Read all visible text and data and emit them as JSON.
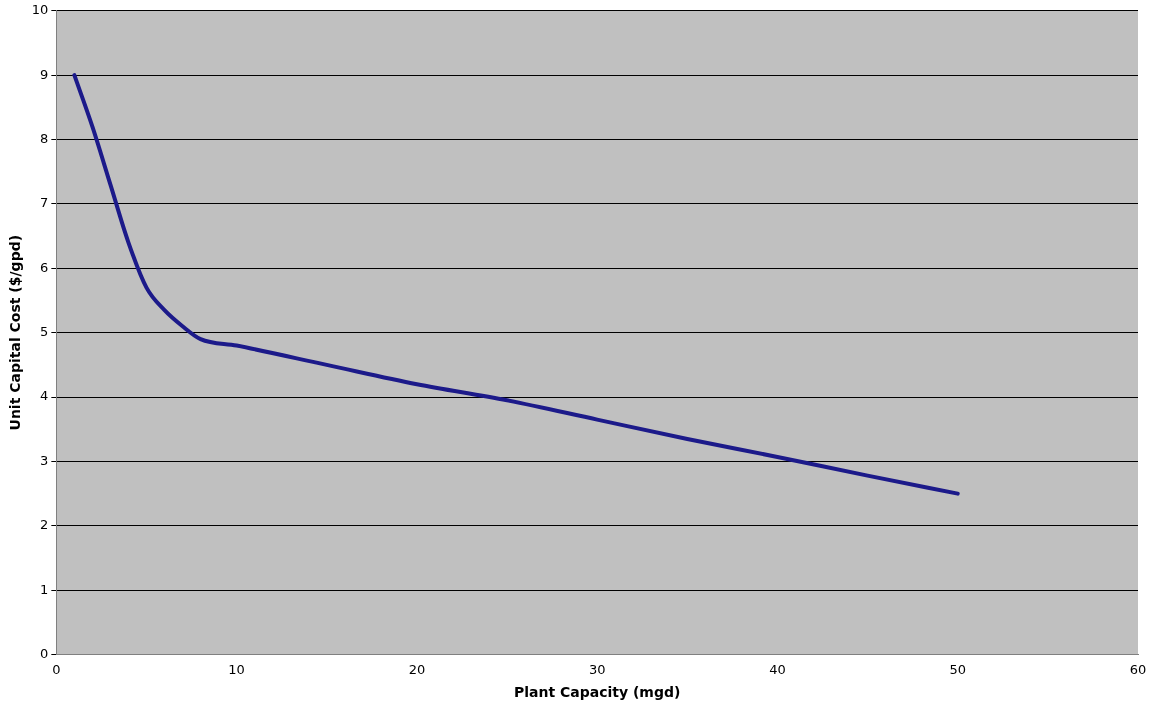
{
  "chart_data": {
    "type": "line",
    "xlabel": "Plant Capacity (mgd)",
    "ylabel": "Unit Capital Cost ($/gpd)",
    "x": [
      1,
      2,
      3,
      4,
      5,
      6,
      7,
      8,
      10,
      15,
      20,
      25,
      30,
      35,
      40,
      45,
      50
    ],
    "series": [
      {
        "color": "#1c1a8a",
        "values": [
          9,
          8.2,
          7.3,
          6.4,
          5.7,
          5.35,
          5.1,
          4.9,
          4.8,
          4.5,
          4.2,
          3.95,
          3.65,
          3.35,
          3.07,
          2.78,
          2.5
        ]
      }
    ],
    "xlim": [
      0,
      60
    ],
    "xticks": [
      0,
      10,
      20,
      30,
      40,
      50,
      60
    ],
    "ylim": [
      0,
      10
    ],
    "yticks": [
      0,
      1,
      2,
      3,
      4,
      5,
      6,
      7,
      8,
      9,
      10
    ],
    "grid": "y",
    "legend": false,
    "marker": "none",
    "line_style": "solid"
  }
}
